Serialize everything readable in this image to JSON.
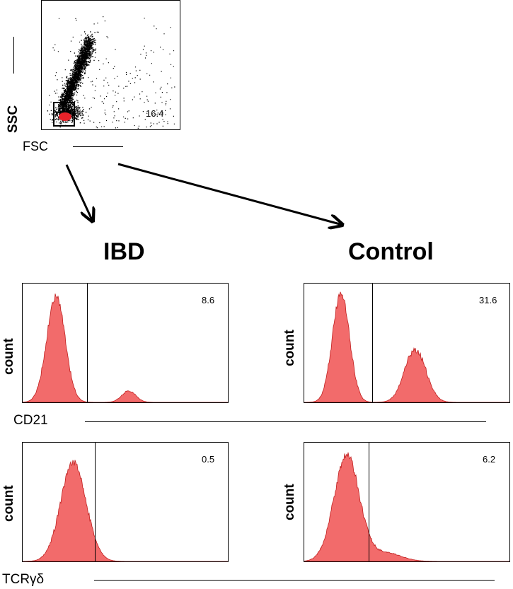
{
  "scatter": {
    "y_label": "SSC",
    "x_label": "FSC",
    "gate_value": "16.4"
  },
  "groups": {
    "left_title": "IBD",
    "right_title": "Control"
  },
  "rows": [
    {
      "x_label": "CD21",
      "y_label": "count",
      "left_value": "8.6",
      "right_value": "31.6"
    },
    {
      "x_label": "TCRγδ",
      "y_label": "count",
      "left_value": "0.5",
      "right_value": "6.2"
    }
  ],
  "colors": {
    "histogram_fill": "#f26b6b",
    "histogram_edge": "#c02020",
    "gate_population": "#e8232a"
  }
}
